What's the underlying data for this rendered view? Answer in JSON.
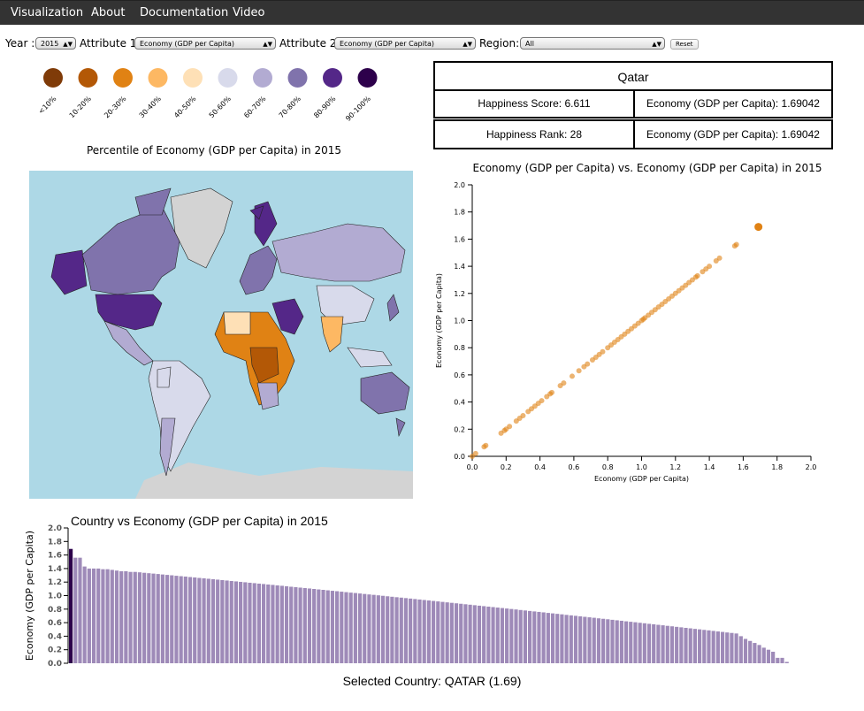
{
  "nav": {
    "items": [
      "Visualization",
      "About",
      "Documentation",
      "Video"
    ]
  },
  "controls": {
    "year_label": "Year :",
    "year_value": "2015",
    "attr1_label": "Attribute 1:",
    "attr1_value": "Economy (GDP per Capita)",
    "attr2_label": "Attribute 2:",
    "attr2_value": "Economy (GDP per Capita)",
    "region_label": "Region:",
    "region_value": "All",
    "reset_label": "Reset"
  },
  "legend": {
    "title": "Percentile of Economy (GDP per Capita) in 2015",
    "items": [
      {
        "label": "<10%",
        "color": "#7f3b08"
      },
      {
        "label": "10-20%",
        "color": "#b35806"
      },
      {
        "label": "20-30%",
        "color": "#e08214"
      },
      {
        "label": "30-40%",
        "color": "#fdb863"
      },
      {
        "label": "40-50%",
        "color": "#fee0b6"
      },
      {
        "label": "50-60%",
        "color": "#d8daeb"
      },
      {
        "label": "60-70%",
        "color": "#b2abd2"
      },
      {
        "label": "70-80%",
        "color": "#8073ac"
      },
      {
        "label": "80-90%",
        "color": "#542788"
      },
      {
        "label": "90-100%",
        "color": "#2d004b"
      }
    ]
  },
  "info": {
    "country": "Qatar",
    "happiness_score": "Happiness Score: 6.611",
    "attr1": "Economy (GDP per Capita): 1.69042",
    "happiness_rank": "Happiness Rank: 28",
    "attr2": "Economy (GDP per Capita): 1.69042"
  },
  "chart_data": [
    {
      "type": "scatter",
      "title": "Economy (GDP per Capita) vs. Economy (GDP per Capita) in 2015",
      "xlabel": "Economy (GDP per Capita)",
      "ylabel": "Economy (GDP per Capita)",
      "xlim": [
        0,
        2.0
      ],
      "ylim": [
        0,
        2.0
      ],
      "x_ticks": [
        "0.0",
        "0.2",
        "0.4",
        "0.6",
        "0.8",
        "1.0",
        "1.2",
        "1.4",
        "1.6",
        "1.8",
        "2.0"
      ],
      "y_ticks": [
        "0.0",
        "0.2",
        "0.4",
        "0.6",
        "0.8",
        "1.0",
        "1.2",
        "1.4",
        "1.6",
        "1.8",
        "2.0"
      ],
      "color": "#e08214",
      "highlight": {
        "x": 1.69,
        "y": 1.69
      },
      "points": [
        0.0,
        0.02,
        0.07,
        0.08,
        0.17,
        0.19,
        0.2,
        0.22,
        0.26,
        0.28,
        0.3,
        0.33,
        0.35,
        0.37,
        0.39,
        0.41,
        0.44,
        0.46,
        0.47,
        0.52,
        0.54,
        0.59,
        0.63,
        0.66,
        0.68,
        0.71,
        0.73,
        0.75,
        0.77,
        0.8,
        0.82,
        0.84,
        0.86,
        0.88,
        0.9,
        0.92,
        0.94,
        0.96,
        0.98,
        1.0,
        1.01,
        1.02,
        1.04,
        1.06,
        1.08,
        1.1,
        1.12,
        1.14,
        1.16,
        1.18,
        1.2,
        1.22,
        1.24,
        1.26,
        1.28,
        1.3,
        1.32,
        1.33,
        1.36,
        1.38,
        1.4,
        1.44,
        1.46,
        1.55,
        1.56,
        1.69
      ]
    },
    {
      "type": "bar",
      "title": "Country vs Economy (GDP per Capita) in 2015",
      "ylabel": "Economy (GDP per Capita)",
      "ylim": [
        0,
        2.0
      ],
      "y_ticks": [
        "0.0",
        "0.2",
        "0.4",
        "0.6",
        "0.8",
        "1.0",
        "1.2",
        "1.4",
        "1.6",
        "1.8",
        "2.0"
      ],
      "color": "#9e8ab8",
      "highlight_color": "#2d004b",
      "highlight_index": 0,
      "values_sorted_desc": {
        "first": [
          1.69,
          1.56,
          1.56,
          1.43,
          1.4,
          1.4,
          1.4,
          1.39,
          1.39,
          1.38,
          1.37,
          1.36,
          1.36,
          1.35,
          1.35
        ],
        "last": [
          0.44,
          0.4,
          0.36,
          0.33,
          0.3,
          0.27,
          0.23,
          0.2,
          0.17,
          0.08,
          0.08,
          0.02,
          0.0
        ],
        "count": 158
      }
    }
  ],
  "selected": "Selected Country: QATAR (1.69)"
}
